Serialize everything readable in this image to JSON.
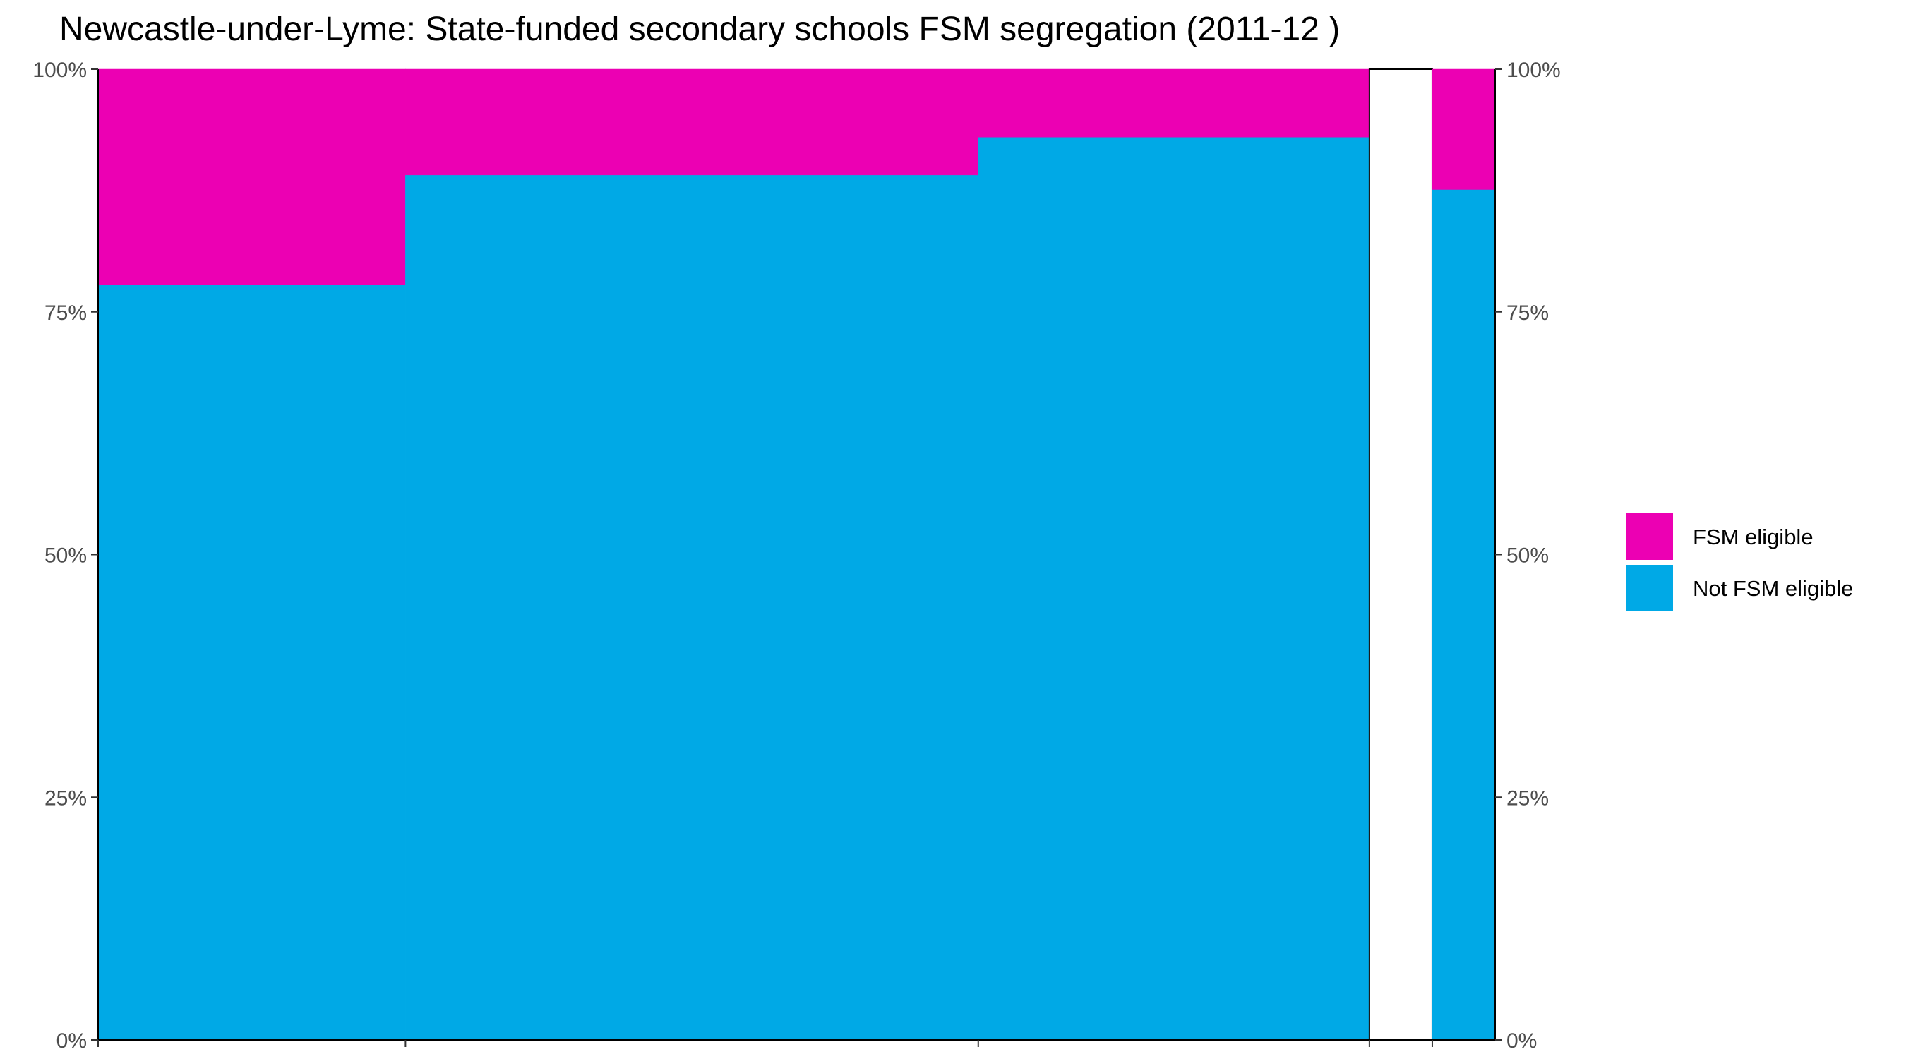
{
  "chart_data": {
    "type": "bar",
    "title": "Newcastle-under-Lyme: State-funded secondary schools FSM segregation (2011-12 )",
    "xlabel": "",
    "ylabel": "",
    "ylim": [
      0,
      1
    ],
    "y_ticks": [
      "0%",
      "25%",
      "50%",
      "75%",
      "100%"
    ],
    "y_axis_secondary": true,
    "grid": false,
    "legend_position": "right",
    "colors": {
      "FSM eligible": "#EC00B3",
      "Not FSM eligible": "#00A9E6"
    },
    "x_boundaries": [
      0,
      0.22,
      0.63,
      0.91,
      0.955,
      1.0
    ],
    "series": [
      {
        "name": "Not FSM eligible",
        "values": [
          0.778,
          0.891,
          0.93,
          0,
          0.876
        ]
      },
      {
        "name": "FSM eligible",
        "values": [
          0.222,
          0.109,
          0.07,
          0,
          0.124
        ]
      }
    ],
    "legend": [
      "FSM eligible",
      "Not FSM eligible"
    ]
  }
}
